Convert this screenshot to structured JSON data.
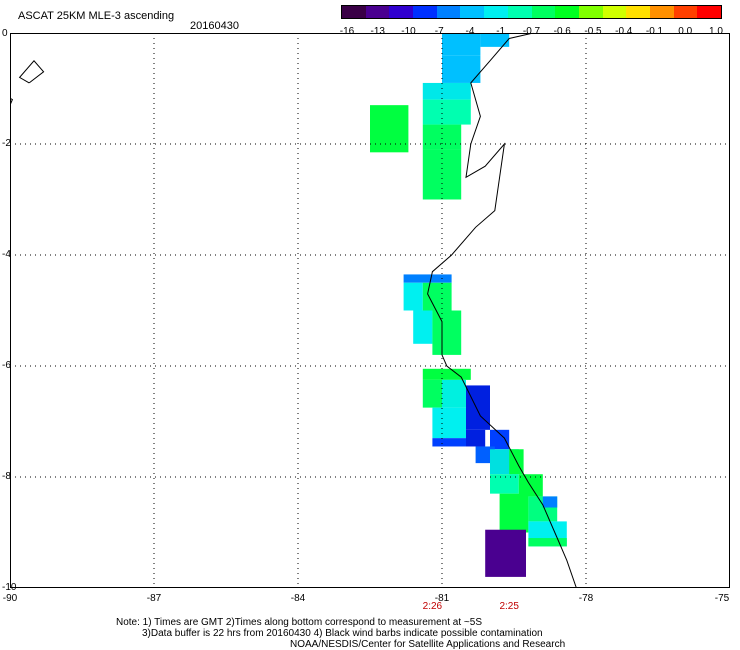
{
  "header": {
    "title": "ASCAT 25KM MLE-3 ascending",
    "date": "20160430"
  },
  "colorbar": {
    "colors": [
      "#3a0046",
      "#4a0090",
      "#3000d0",
      "#0030ff",
      "#0080ff",
      "#00c0ff",
      "#00f0f0",
      "#00ffb0",
      "#00ff60",
      "#00ff20",
      "#80ff00",
      "#d0ff00",
      "#ffe000",
      "#ff9000",
      "#ff4000",
      "#ff0000"
    ],
    "labels": [
      "-16",
      "-13",
      "-10",
      "-7",
      "-4",
      "-1",
      "-0.7",
      "-0.6",
      "-0.5",
      "-0.4",
      "-0.1",
      "0.0",
      "1.0"
    ]
  },
  "axes": {
    "lat_labels": [
      "0",
      "-2",
      "-4",
      "-6",
      "-8",
      "-10"
    ],
    "lat_values": [
      0,
      -2,
      -4,
      -6,
      -8,
      -10
    ],
    "lon_labels": [
      "-90",
      "-87",
      "-84",
      "-81",
      "-78",
      "-75"
    ],
    "lon_values": [
      -90,
      -87,
      -84,
      -81,
      -78,
      -75
    ],
    "lon_range": [
      -90,
      -75
    ],
    "lat_range": [
      0,
      -10
    ]
  },
  "times": [
    {
      "label": "2:26",
      "lon": -81.2
    },
    {
      "label": "2:25",
      "lon": -79.6
    }
  ],
  "cells": [
    {
      "lon": -81.0,
      "lat": 0.0,
      "w": 0.8,
      "h": 0.4,
      "color": "#00c0ff"
    },
    {
      "lon": -80.2,
      "lat": 0.0,
      "w": 0.6,
      "h": 0.25,
      "color": "#00c0ff"
    },
    {
      "lon": -81.0,
      "lat": -0.4,
      "w": 0.8,
      "h": 0.5,
      "color": "#00c0ff"
    },
    {
      "lon": -81.4,
      "lat": -0.9,
      "w": 1.0,
      "h": 0.3,
      "color": "#00e8e8"
    },
    {
      "lon": -81.4,
      "lat": -1.2,
      "w": 1.0,
      "h": 0.45,
      "color": "#00ffb0"
    },
    {
      "lon": -81.4,
      "lat": -1.65,
      "w": 0.8,
      "h": 0.45,
      "color": "#00ff60"
    },
    {
      "lon": -82.5,
      "lat": -1.3,
      "w": 0.8,
      "h": 0.85,
      "color": "#00ff40"
    },
    {
      "lon": -81.4,
      "lat": -2.1,
      "w": 0.8,
      "h": 0.9,
      "color": "#00ff60"
    },
    {
      "lon": -81.8,
      "lat": -4.35,
      "w": 1.0,
      "h": 0.15,
      "color": "#0080ff"
    },
    {
      "lon": -81.8,
      "lat": -4.5,
      "w": 0.4,
      "h": 0.5,
      "color": "#00f0f0"
    },
    {
      "lon": -81.4,
      "lat": -4.5,
      "w": 0.6,
      "h": 0.5,
      "color": "#00ff60"
    },
    {
      "lon": -81.6,
      "lat": -5.0,
      "w": 0.4,
      "h": 0.6,
      "color": "#00f0f0"
    },
    {
      "lon": -81.2,
      "lat": -5.0,
      "w": 0.6,
      "h": 0.8,
      "color": "#00ff60"
    },
    {
      "lon": -81.4,
      "lat": -6.05,
      "w": 1.0,
      "h": 0.2,
      "color": "#00ff40"
    },
    {
      "lon": -81.4,
      "lat": -6.25,
      "w": 0.4,
      "h": 0.5,
      "color": "#00ff60"
    },
    {
      "lon": -81.0,
      "lat": -6.25,
      "w": 0.5,
      "h": 0.5,
      "color": "#00f0e0"
    },
    {
      "lon": -80.5,
      "lat": -6.35,
      "w": 0.5,
      "h": 0.8,
      "color": "#0020e0"
    },
    {
      "lon": -81.2,
      "lat": -6.75,
      "w": 0.7,
      "h": 0.55,
      "color": "#00f0f0"
    },
    {
      "lon": -81.2,
      "lat": -7.3,
      "w": 0.7,
      "h": 0.15,
      "color": "#0040ff"
    },
    {
      "lon": -80.5,
      "lat": -7.15,
      "w": 0.4,
      "h": 0.3,
      "color": "#0020e0"
    },
    {
      "lon": -80.0,
      "lat": -7.15,
      "w": 0.4,
      "h": 0.35,
      "color": "#0040ff"
    },
    {
      "lon": -80.3,
      "lat": -7.45,
      "w": 0.4,
      "h": 0.3,
      "color": "#0060ff"
    },
    {
      "lon": -80.0,
      "lat": -7.5,
      "w": 0.6,
      "h": 0.45,
      "color": "#00e0e0"
    },
    {
      "lon": -79.6,
      "lat": -7.5,
      "w": 0.3,
      "h": 0.45,
      "color": "#00ff40"
    },
    {
      "lon": -80.0,
      "lat": -7.95,
      "w": 0.6,
      "h": 0.35,
      "color": "#00ffb0"
    },
    {
      "lon": -79.4,
      "lat": -7.95,
      "w": 0.5,
      "h": 0.4,
      "color": "#00ff40"
    },
    {
      "lon": -79.8,
      "lat": -8.3,
      "w": 0.6,
      "h": 0.7,
      "color": "#00ff40"
    },
    {
      "lon": -79.2,
      "lat": -8.35,
      "w": 0.6,
      "h": 0.45,
      "color": "#00ff80"
    },
    {
      "lon": -78.9,
      "lat": -8.35,
      "w": 0.3,
      "h": 0.2,
      "color": "#0080ff"
    },
    {
      "lon": -79.2,
      "lat": -8.8,
      "w": 0.8,
      "h": 0.45,
      "color": "#00f0f0"
    },
    {
      "lon": -79.2,
      "lat": -9.1,
      "w": 0.8,
      "h": 0.15,
      "color": "#00ff60"
    },
    {
      "lon": -80.1,
      "lat": -8.95,
      "w": 0.85,
      "h": 0.85,
      "color": "#4a0090"
    }
  ],
  "coast": [
    [
      -79.1,
      0.0
    ],
    [
      -79.6,
      -0.1
    ],
    [
      -80.0,
      -0.5
    ],
    [
      -80.4,
      -0.9
    ],
    [
      -80.2,
      -1.5
    ],
    [
      -80.4,
      -2.0
    ],
    [
      -80.5,
      -2.6
    ],
    [
      -80.1,
      -2.4
    ],
    [
      -79.7,
      -2.0
    ],
    [
      -79.8,
      -2.6
    ],
    [
      -79.9,
      -3.2
    ],
    [
      -80.3,
      -3.5
    ],
    [
      -80.8,
      -4.0
    ],
    [
      -81.2,
      -4.3
    ],
    [
      -81.3,
      -4.7
    ],
    [
      -81.0,
      -5.2
    ],
    [
      -81.0,
      -5.8
    ],
    [
      -80.9,
      -6.0
    ],
    [
      -80.6,
      -6.2
    ],
    [
      -80.2,
      -6.9
    ],
    [
      -79.7,
      -7.3
    ],
    [
      -79.4,
      -7.8
    ],
    [
      -79.2,
      -8.1
    ],
    [
      -78.9,
      -8.5
    ],
    [
      -78.6,
      -9.1
    ],
    [
      -78.4,
      -9.5
    ],
    [
      -78.2,
      -10.0
    ]
  ],
  "islands": [
    [
      [
        -89.6,
        -0.9
      ],
      [
        -89.3,
        -0.7
      ],
      [
        -89.5,
        -0.5
      ],
      [
        -89.8,
        -0.8
      ],
      [
        -89.6,
        -0.9
      ]
    ],
    [
      [
        -90.0,
        -1.3
      ],
      [
        -89.95,
        -1.2
      ],
      [
        -90.05,
        -1.15
      ],
      [
        -90.0,
        -1.3
      ]
    ]
  ],
  "notes": {
    "line1": "Note: 1) Times are GMT 2)Times along bottom correspond to measurement at ~5S",
    "line2": "3)Data buffer is 22 hrs from 20160430 4) Black wind barbs indicate possible contamination",
    "line3": "NOAA/NESDIS/Center for Satellite Applications and Research"
  }
}
